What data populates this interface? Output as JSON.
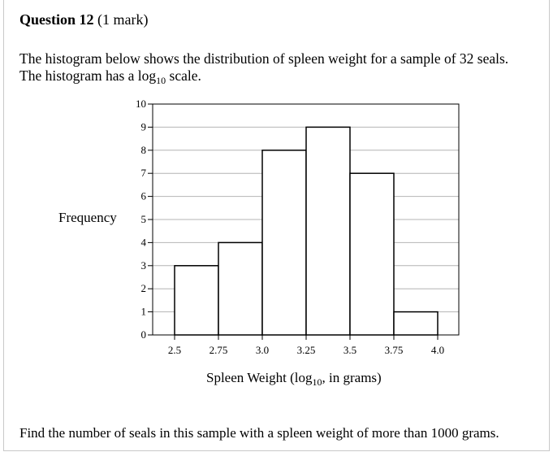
{
  "question": {
    "number_label": "Question 12",
    "marks": "(1 mark)",
    "line1": "The histogram below shows the distribution of spleen weight for a sample of 32 seals.",
    "line2_pre": "The histogram has a log",
    "line2_sub": "10",
    "line2_post": " scale.",
    "prompt": "Find the number of seals in this sample with a spleen weight of more than 1000 grams."
  },
  "chart_data": {
    "type": "bar",
    "bin_edges": [
      2.5,
      2.75,
      3.0,
      3.25,
      3.5,
      3.75,
      4.0
    ],
    "values": [
      3,
      4,
      8,
      9,
      7,
      1
    ],
    "x_tick_labels": [
      "2.5",
      "2.75",
      "3.0",
      "3.25",
      "3.5",
      "3.75",
      "4.0"
    ],
    "y_ticks": [
      0,
      1,
      2,
      3,
      4,
      5,
      6,
      7,
      8,
      9,
      10
    ],
    "ylim": [
      0,
      10
    ],
    "xlim": [
      2.5,
      4.0
    ],
    "ylabel": "Frequency",
    "xlabel_pre": "Spleen Weight (log",
    "xlabel_sub": "10",
    "xlabel_post": ", in grams)",
    "grid": true
  }
}
